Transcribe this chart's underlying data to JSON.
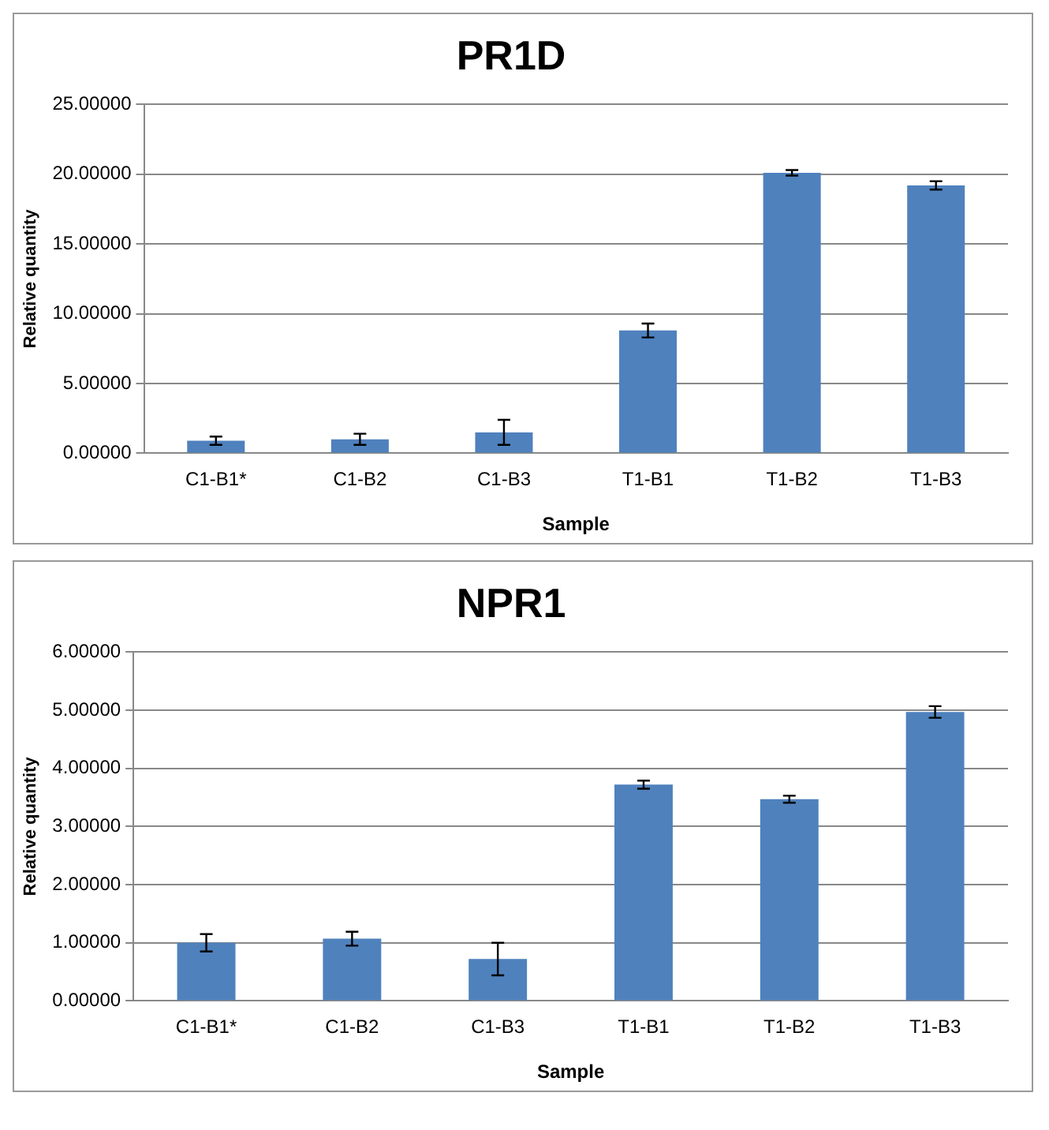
{
  "chart_data": [
    {
      "type": "bar",
      "title": "PR1D",
      "xlabel": "Sample",
      "ylabel": "Relative quantity",
      "categories": [
        "C1-B1*",
        "C1-B2",
        "C1-B3",
        "T1-B1",
        "T1-B2",
        "T1-B3"
      ],
      "values": [
        0.9,
        1.0,
        1.5,
        8.8,
        20.1,
        19.2
      ],
      "errors": [
        0.3,
        0.4,
        0.9,
        0.5,
        0.2,
        0.3
      ],
      "color": "#4f81bd",
      "ylim": [
        0,
        25
      ],
      "yticks": [
        {
          "value": 0,
          "label": "0.00000"
        },
        {
          "value": 5,
          "label": "5.00000"
        },
        {
          "value": 10,
          "label": "10.00000"
        },
        {
          "value": 15,
          "label": "15.00000"
        },
        {
          "value": 20,
          "label": "20.00000"
        },
        {
          "value": 25,
          "label": "25.00000"
        }
      ],
      "grid": "y"
    },
    {
      "type": "bar",
      "title": "NPR1",
      "xlabel": "Sample",
      "ylabel": "Relative quantity",
      "categories": [
        "C1-B1*",
        "C1-B2",
        "C1-B3",
        "T1-B1",
        "T1-B2",
        "T1-B3"
      ],
      "values": [
        1.0,
        1.07,
        0.72,
        3.72,
        3.47,
        4.97
      ],
      "errors": [
        0.15,
        0.12,
        0.28,
        0.07,
        0.06,
        0.1
      ],
      "color": "#4f81bd",
      "ylim": [
        0,
        6
      ],
      "yticks": [
        {
          "value": 0,
          "label": "0.00000"
        },
        {
          "value": 1,
          "label": "1.00000"
        },
        {
          "value": 2,
          "label": "2.00000"
        },
        {
          "value": 3,
          "label": "3.00000"
        },
        {
          "value": 4,
          "label": "4.00000"
        },
        {
          "value": 5,
          "label": "5.00000"
        },
        {
          "value": 6,
          "label": "6.00000"
        }
      ],
      "grid": "y"
    }
  ]
}
